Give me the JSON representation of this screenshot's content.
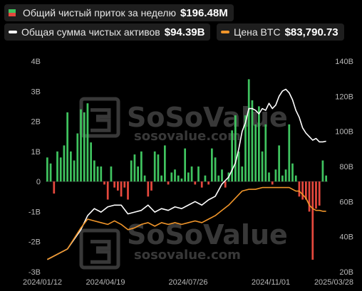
{
  "legend": {
    "flow_label": "Общий чистый приток за неделю",
    "flow_value": "$196.48M",
    "assets_label": "Общая сумма чистых активов",
    "assets_value": "$94.39B",
    "btc_label": "Цена BTC",
    "btc_value": "$83,790.73"
  },
  "watermark": {
    "brand": "SoSoValue",
    "domain": "sosovalue.com"
  },
  "colors": {
    "background": "#000000",
    "positive_bar": "#3fc35f",
    "negative_bar": "#e5483d",
    "assets_line": "#ffffff",
    "btc_line": "#f0952a",
    "tick_text": "#b8b8b8"
  },
  "chart_data": {
    "type": "bar",
    "x_ticks": [
      "2024/01/12",
      "2024/04/19",
      "2024/07/26",
      "2024/11/01",
      "2025/03/28"
    ],
    "left_axis": {
      "ticks": [
        "4B",
        "3B",
        "2B",
        "1B",
        "0",
        "-1B",
        "-2B",
        "-3B"
      ],
      "range": [
        -3,
        4
      ],
      "unit": "B"
    },
    "right_axis": {
      "ticks": [
        "140B",
        "120B",
        "100B",
        "80B",
        "60B",
        "40B",
        "20B"
      ],
      "range": [
        20,
        140
      ],
      "unit": "B"
    },
    "series": [
      {
        "name": "Общий чистый приток за неделю",
        "type": "bar",
        "axis": "left",
        "values": [
          0.8,
          0.6,
          -0.4,
          1.0,
          0.8,
          1.2,
          2.3,
          1.0,
          0.7,
          1.6,
          2.4,
          2.3,
          2.6,
          1.3,
          0.7,
          0.5,
          0.5,
          -0.1,
          -0.6,
          0.5,
          -0.2,
          -0.3,
          -0.5,
          -0.2,
          -0.6,
          0.7,
          0.9,
          0.5,
          1.0,
          0.2,
          -0.5,
          -0.3,
          1.0,
          0.9,
          0.2,
          1.2,
          -0.1,
          0.3,
          0.4,
          0.2,
          0.1,
          1.1,
          0.3,
          0.5,
          -0.1,
          0.5,
          -0.2,
          0.2,
          -0.1,
          1.1,
          0.8,
          0.2,
          0.4,
          -0.2,
          0.3,
          1.7,
          2.2,
          1.0,
          0.5,
          2.2,
          3.4,
          2.7,
          1.9,
          2.5,
          1.0,
          1.9,
          0.3,
          -0.1,
          0.4,
          1.2,
          0.2,
          0.4,
          1.9,
          0.6,
          0.2,
          -0.5,
          -0.6,
          -0.6,
          -1.0,
          -2.6,
          -0.9,
          -0.8,
          0.7,
          0.2
        ]
      },
      {
        "name": "Общая сумма чистых активов",
        "type": "line",
        "axis": "right",
        "points": [
          [
            0,
            27
          ],
          [
            6,
            33
          ],
          [
            10,
            44
          ],
          [
            12,
            52
          ],
          [
            14,
            56
          ],
          [
            16,
            54
          ],
          [
            18,
            57
          ],
          [
            20,
            58
          ],
          [
            22,
            58
          ],
          [
            24,
            53
          ],
          [
            26,
            54
          ],
          [
            28,
            55
          ],
          [
            30,
            58
          ],
          [
            32,
            54
          ],
          [
            34,
            56
          ],
          [
            36,
            55
          ],
          [
            38,
            57
          ],
          [
            40,
            56
          ],
          [
            42,
            58
          ],
          [
            44,
            60
          ],
          [
            46,
            58
          ],
          [
            48,
            61
          ],
          [
            50,
            63
          ],
          [
            52,
            70
          ],
          [
            54,
            74
          ],
          [
            56,
            82
          ],
          [
            57,
            90
          ],
          [
            58,
            100
          ],
          [
            59,
            105
          ],
          [
            60,
            113
          ],
          [
            61,
            113
          ],
          [
            62,
            112
          ],
          [
            63,
            110
          ],
          [
            64,
            113
          ],
          [
            65,
            112
          ],
          [
            66,
            116
          ],
          [
            67,
            113
          ],
          [
            68,
            115
          ],
          [
            69,
            120
          ],
          [
            70,
            123
          ],
          [
            71,
            124
          ],
          [
            72,
            122
          ],
          [
            73,
            118
          ],
          [
            74,
            112
          ],
          [
            75,
            108
          ],
          [
            76,
            102
          ],
          [
            77,
            99
          ],
          [
            78,
            97
          ],
          [
            79,
            95
          ],
          [
            80,
            96
          ],
          [
            81,
            94
          ],
          [
            82,
            94
          ],
          [
            83,
            94.4
          ]
        ]
      },
      {
        "name": "Цена BTC",
        "type": "line",
        "axis": "right",
        "points": [
          [
            0,
            27
          ],
          [
            6,
            33
          ],
          [
            10,
            45
          ],
          [
            12,
            50
          ],
          [
            14,
            49
          ],
          [
            16,
            48
          ],
          [
            18,
            47
          ],
          [
            20,
            49
          ],
          [
            22,
            47
          ],
          [
            24,
            44
          ],
          [
            26,
            45
          ],
          [
            28,
            47
          ],
          [
            30,
            48
          ],
          [
            32,
            46
          ],
          [
            34,
            48
          ],
          [
            36,
            47
          ],
          [
            38,
            48
          ],
          [
            40,
            47
          ],
          [
            42,
            48
          ],
          [
            44,
            49
          ],
          [
            46,
            48
          ],
          [
            48,
            50
          ],
          [
            50,
            52
          ],
          [
            52,
            55
          ],
          [
            54,
            58
          ],
          [
            56,
            62
          ],
          [
            58,
            66
          ],
          [
            60,
            67
          ],
          [
            62,
            67
          ],
          [
            64,
            68
          ],
          [
            66,
            68
          ],
          [
            68,
            68
          ],
          [
            70,
            68
          ],
          [
            72,
            68
          ],
          [
            73,
            67
          ],
          [
            74,
            66
          ],
          [
            75,
            66
          ],
          [
            76,
            64
          ],
          [
            77,
            62
          ],
          [
            78,
            58
          ],
          [
            79,
            56
          ],
          [
            80,
            55
          ],
          [
            81,
            55
          ],
          [
            82,
            54.5
          ],
          [
            83,
            54.5
          ]
        ]
      }
    ]
  }
}
